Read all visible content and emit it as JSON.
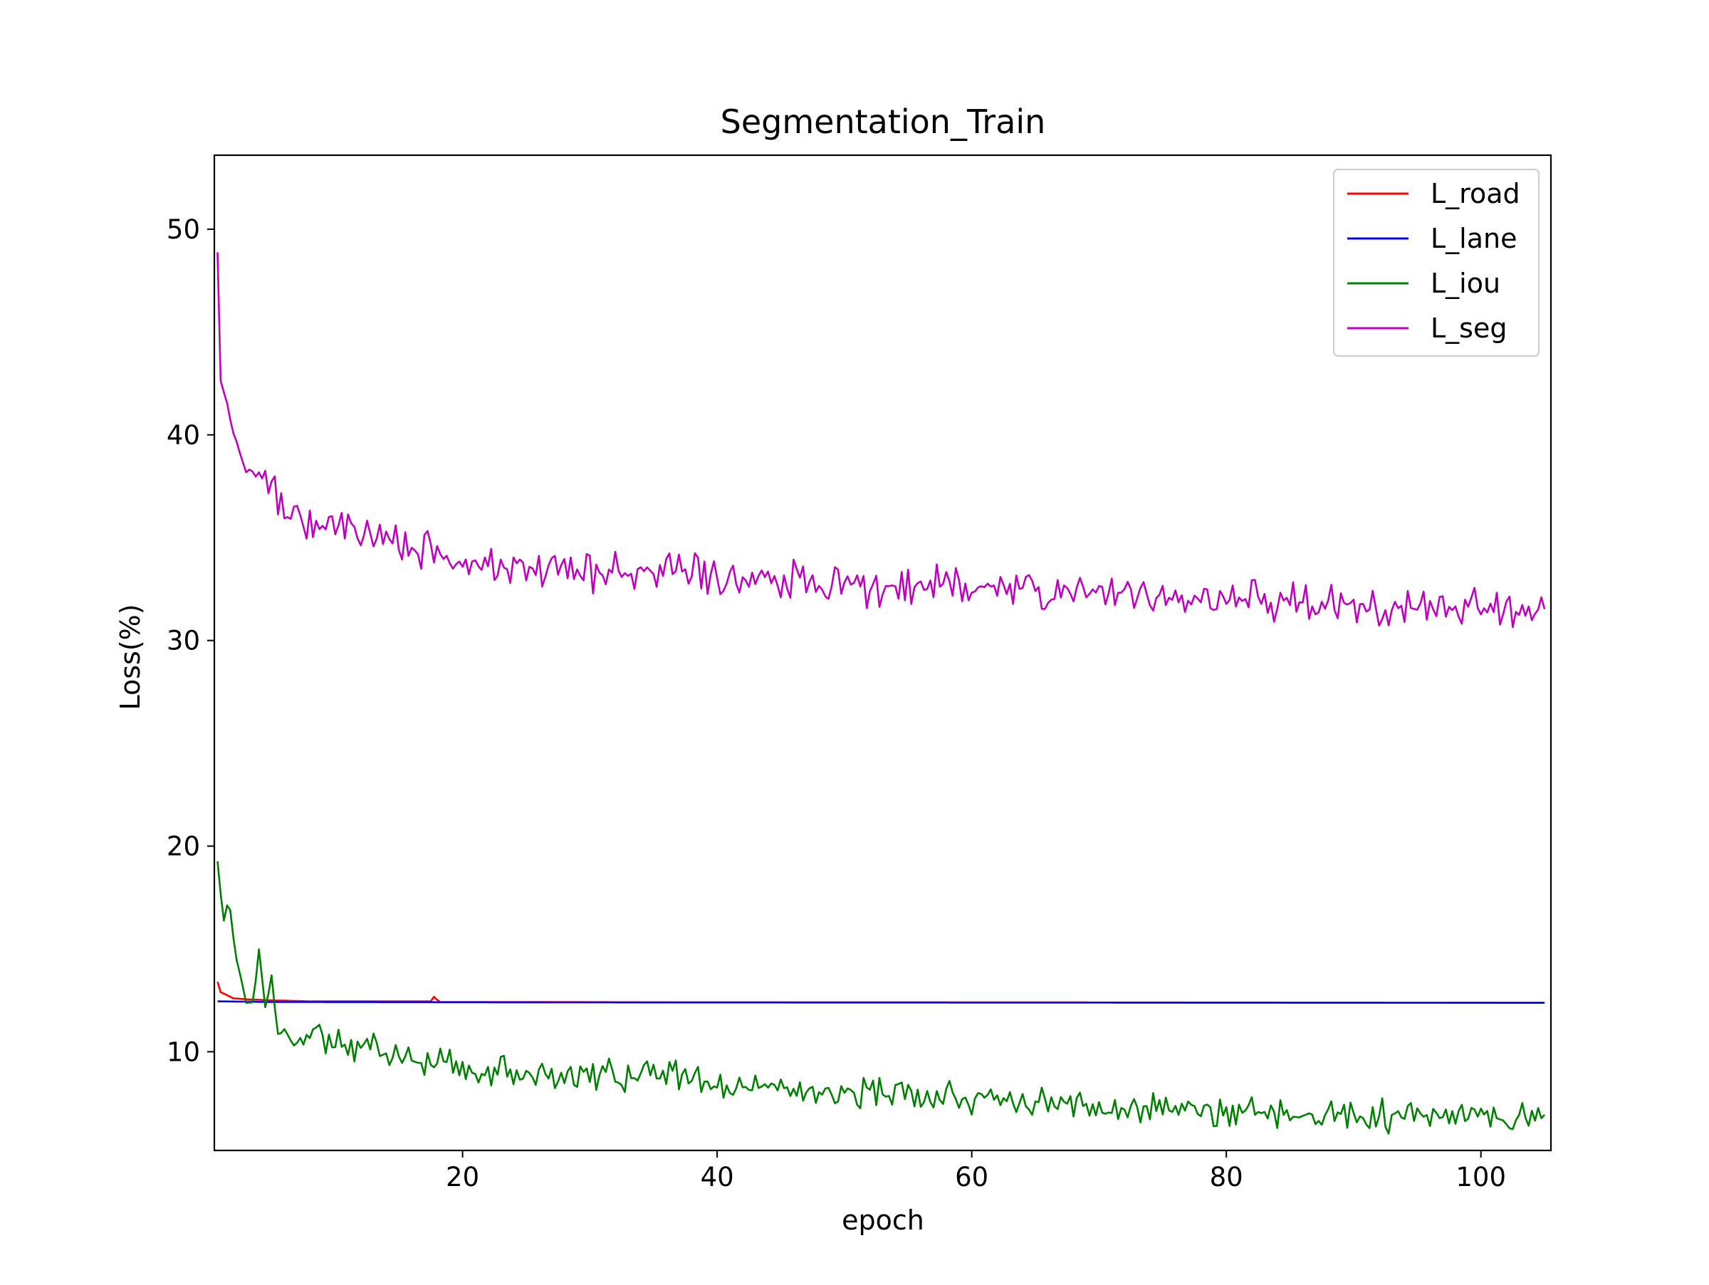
{
  "chart_data": {
    "type": "line",
    "title": "Segmentation_Train",
    "xlabel": "epoch",
    "ylabel": "Loss(%)",
    "xlim": [
      0.5,
      105.5
    ],
    "ylim": [
      5.2,
      53.6
    ],
    "xticks": [
      20,
      40,
      60,
      80,
      100
    ],
    "yticks": [
      10,
      20,
      30,
      40,
      50
    ],
    "grid": false,
    "legend_position": "upper right",
    "x_start": 0.75,
    "x_end": 105,
    "samples": 418,
    "series": [
      {
        "name": "L_road",
        "color": "#ff0000",
        "keyframes": [
          [
            0.75,
            13.4
          ],
          [
            1.0,
            12.9
          ],
          [
            1.5,
            12.75
          ],
          [
            2.0,
            12.6
          ],
          [
            3.0,
            12.55
          ],
          [
            5.0,
            12.5
          ],
          [
            8.0,
            12.45
          ],
          [
            17.6,
            12.45
          ],
          [
            17.8,
            12.75
          ],
          [
            18.1,
            12.42
          ],
          [
            25.0,
            12.42
          ],
          [
            38.0,
            12.4
          ],
          [
            60.0,
            12.4
          ],
          [
            105.0,
            12.38
          ]
        ]
      },
      {
        "name": "L_lane",
        "color": "#0000ff",
        "keyframes": [
          [
            0.75,
            12.45
          ],
          [
            5.0,
            12.42
          ],
          [
            30.0,
            12.4
          ],
          [
            105.0,
            12.38
          ]
        ]
      },
      {
        "name": "L_iou",
        "color": "#008000",
        "keyframes": [
          [
            0.75,
            19.2
          ],
          [
            1.3,
            16.0
          ],
          [
            1.6,
            17.7
          ],
          [
            2.2,
            14.6
          ],
          [
            3.0,
            12.5
          ],
          [
            3.6,
            12.4
          ],
          [
            4.0,
            14.9
          ],
          [
            4.5,
            12.3
          ],
          [
            5.0,
            13.7
          ],
          [
            5.5,
            11.0
          ],
          [
            8.0,
            10.8
          ],
          [
            10.0,
            10.5
          ],
          [
            13.0,
            10.2
          ],
          [
            17.5,
            9.3
          ],
          [
            18.5,
            10.0
          ],
          [
            20.0,
            9.2
          ],
          [
            25.0,
            8.9
          ],
          [
            30.0,
            8.9
          ],
          [
            35.0,
            8.8
          ],
          [
            37.0,
            8.9
          ],
          [
            40.0,
            8.3
          ],
          [
            45.0,
            8.2
          ],
          [
            50.0,
            8.0
          ],
          [
            55.0,
            7.9
          ],
          [
            60.0,
            7.7
          ],
          [
            70.0,
            7.4
          ],
          [
            80.0,
            7.1
          ],
          [
            90.0,
            6.9
          ],
          [
            100.0,
            6.8
          ],
          [
            105.0,
            6.8
          ]
        ],
        "noise_amp": 0.55,
        "seed": 7
      },
      {
        "name": "L_seg",
        "color": "#bf00bf",
        "keyframes": [
          [
            0.75,
            48.8
          ],
          [
            1.0,
            42.5
          ],
          [
            1.5,
            41.5
          ],
          [
            2.0,
            40.0
          ],
          [
            3.0,
            38.2
          ],
          [
            4.0,
            37.9
          ],
          [
            5.0,
            37.5
          ],
          [
            6.0,
            36.6
          ],
          [
            8.0,
            35.8
          ],
          [
            10.0,
            35.5
          ],
          [
            12.0,
            35.0
          ],
          [
            15.0,
            34.6
          ],
          [
            18.0,
            34.3
          ],
          [
            20.0,
            34.0
          ],
          [
            25.0,
            33.6
          ],
          [
            30.0,
            33.4
          ],
          [
            35.0,
            33.3
          ],
          [
            40.0,
            33.0
          ],
          [
            45.0,
            32.8
          ],
          [
            50.0,
            32.7
          ],
          [
            55.0,
            32.6
          ],
          [
            60.0,
            32.5
          ],
          [
            70.0,
            32.2
          ],
          [
            80.0,
            31.9
          ],
          [
            90.0,
            31.6
          ],
          [
            100.0,
            31.5
          ],
          [
            105.0,
            31.5
          ]
        ],
        "noise_amp": 0.75,
        "seed": 3
      }
    ]
  }
}
